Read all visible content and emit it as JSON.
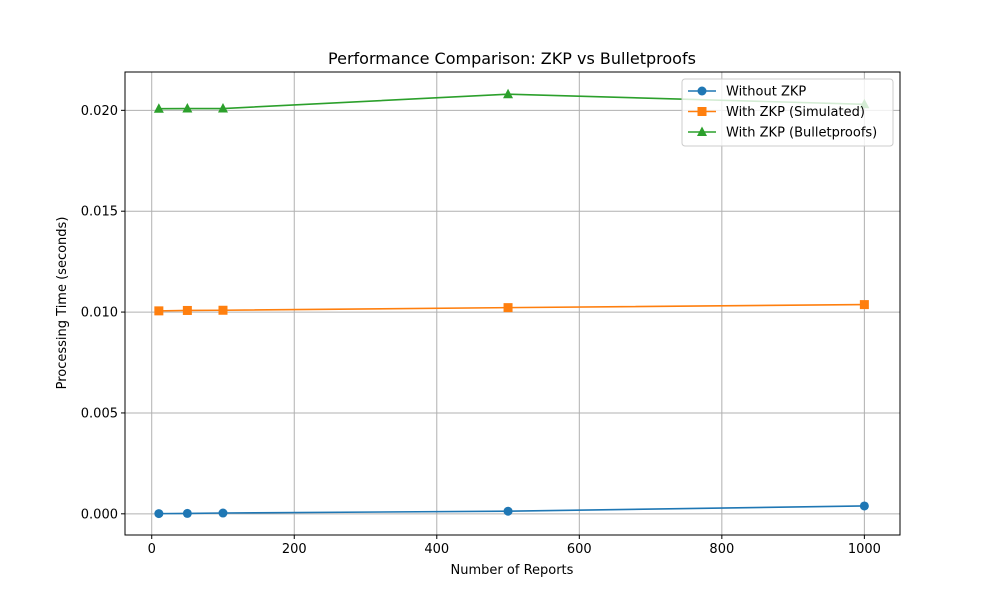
{
  "chart_data": {
    "type": "line",
    "title": "Performance Comparison: ZKP vs Bulletproofs",
    "xlabel": "Number of Reports",
    "ylabel": "Processing Time (seconds)",
    "xlim": [
      -37.5,
      1050
    ],
    "ylim": [
      -0.00105,
      0.0219
    ],
    "xticks": [
      0,
      200,
      400,
      600,
      800,
      1000
    ],
    "xtick_labels": [
      "0",
      "200",
      "400",
      "600",
      "800",
      "1000"
    ],
    "yticks": [
      0.0,
      0.005,
      0.01,
      0.015,
      0.02
    ],
    "ytick_labels": [
      "0.000",
      "0.005",
      "0.010",
      "0.015",
      "0.020"
    ],
    "grid": true,
    "legend_position": "top-right",
    "x": [
      10,
      50,
      100,
      500,
      1000
    ],
    "series": [
      {
        "name": "Without ZKP",
        "values": [
          1e-05,
          2e-05,
          4e-05,
          0.00013,
          0.00039
        ],
        "color": "#1f77b4",
        "marker": "circle"
      },
      {
        "name": "With ZKP (Simulated)",
        "values": [
          0.01006,
          0.01008,
          0.01009,
          0.01022,
          0.01037
        ],
        "color": "#ff7f0e",
        "marker": "square"
      },
      {
        "name": "With ZKP (Bulletproofs)",
        "values": [
          0.02008,
          0.02009,
          0.02009,
          0.0208,
          0.0203
        ],
        "color": "#2ca02c",
        "marker": "triangle"
      }
    ]
  }
}
